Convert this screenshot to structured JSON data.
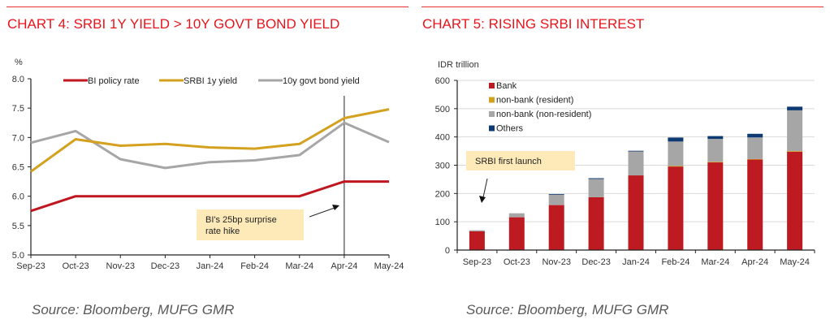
{
  "charts": [
    {
      "title": "CHART 4: SRBI 1Y YIELD > 10Y GOVT BOND YIELD",
      "source": "Source: Bloomberg, MUFG GMR",
      "annotation": "BI's 25bp surprise rate hike",
      "annotation_lines": [
        "BI's 25bp surprise",
        "rate hike"
      ],
      "marker_line_at": "Apr-24"
    },
    {
      "title": "CHART 5: RISING SRBI INTEREST",
      "source": "Source: Bloomberg, MUFG GMR",
      "annotation": "SRBI first launch",
      "annotation_lines": [
        "SRBI first launch"
      ]
    }
  ],
  "colors": {
    "title_red": "#e8141c",
    "policy_rate": "#c0161f",
    "srbi_1y": "#d4a11e",
    "govt_10y": "#a6a6a6",
    "bank": "#be1a22",
    "nonbank_resident": "#d4a11e",
    "nonbank_nonresident": "#a6a6a6",
    "others": "#0d3a73",
    "annotation_fill": "#fdeab8"
  },
  "chart_data": [
    {
      "type": "line",
      "title": "CHART 4: SRBI 1Y YIELD > 10Y GOVT BOND YIELD",
      "xlabel": "",
      "ylabel": "%",
      "ylim": [
        5.0,
        8.0
      ],
      "yticks": [
        "5.0",
        "5.5",
        "6.0",
        "6.5",
        "7.0",
        "7.5",
        "8.0"
      ],
      "categories": [
        "Sep-23",
        "Oct-23",
        "Nov-23",
        "Dec-23",
        "Jan-24",
        "Feb-24",
        "Mar-24",
        "Apr-24",
        "May-24"
      ],
      "grid": false,
      "legend_position": "top",
      "series": [
        {
          "name": "BI policy rate",
          "color_key": "policy_rate",
          "values": [
            5.75,
            6.0,
            6.0,
            6.0,
            6.0,
            6.0,
            6.0,
            6.25,
            6.25
          ]
        },
        {
          "name": "SRBI 1y yield",
          "color_key": "srbi_1y",
          "values": [
            6.42,
            6.97,
            6.86,
            6.89,
            6.83,
            6.81,
            6.89,
            7.33,
            7.48
          ]
        },
        {
          "name": "10y govt bond yield",
          "color_key": "govt_10y",
          "values": [
            6.91,
            7.11,
            6.63,
            6.48,
            6.58,
            6.61,
            6.7,
            7.25,
            6.92
          ]
        }
      ]
    },
    {
      "type": "bar",
      "stacked": true,
      "title": "CHART 5: RISING SRBI INTEREST",
      "xlabel": "",
      "ylabel": "IDR trillion",
      "ylim": [
        0,
        600
      ],
      "yticks": [
        "0",
        "100",
        "200",
        "300",
        "400",
        "500",
        "600"
      ],
      "categories": [
        "Sep-23",
        "Oct-23",
        "Nov-23",
        "Dec-23",
        "Jan-24",
        "Feb-24",
        "Mar-24",
        "Apr-24",
        "May-24"
      ],
      "grid": true,
      "legend_position": "top-left",
      "series": [
        {
          "name": "Bank",
          "color_key": "bank",
          "values": [
            66,
            116,
            159,
            187,
            264,
            296,
            310,
            320,
            348
          ]
        },
        {
          "name": "non-bank (resident)",
          "color_key": "nonbank_resident",
          "values": [
            0,
            0,
            0,
            0,
            0,
            1,
            2,
            2,
            2
          ]
        },
        {
          "name": "non-bank (non-resident)",
          "color_key": "nonbank_nonresident",
          "values": [
            4,
            14,
            37,
            64,
            86,
            87,
            81,
            76,
            144
          ]
        },
        {
          "name": "Others",
          "color_key": "others",
          "values": [
            0,
            0,
            2,
            3,
            1,
            14,
            10,
            13,
            13
          ]
        }
      ]
    }
  ]
}
